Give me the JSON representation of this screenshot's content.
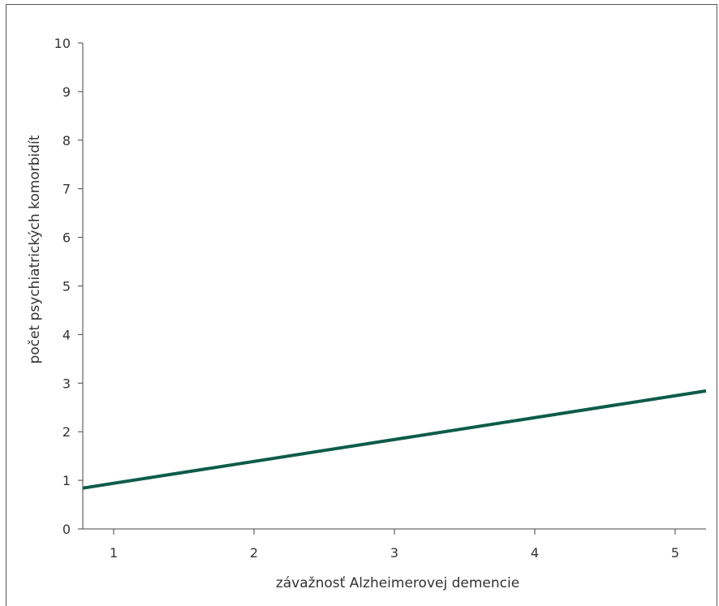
{
  "chart_data": {
    "type": "line",
    "title": "",
    "xlabel": "závažnosť Alzheimerovej demencie",
    "ylabel": "počet psychiatrických komorbidít",
    "xlim": [
      0.78,
      5.22
    ],
    "ylim": [
      0,
      10
    ],
    "x_ticks": [
      1,
      2,
      3,
      4,
      5
    ],
    "y_ticks": [
      0,
      1,
      2,
      3,
      4,
      5,
      6,
      7,
      8,
      9,
      10
    ],
    "grid": false,
    "legend": "none",
    "series": [
      {
        "color": "#0d5c4a",
        "x": [
          0.78,
          5.22
        ],
        "y": [
          0.84,
          2.84
        ]
      }
    ]
  }
}
